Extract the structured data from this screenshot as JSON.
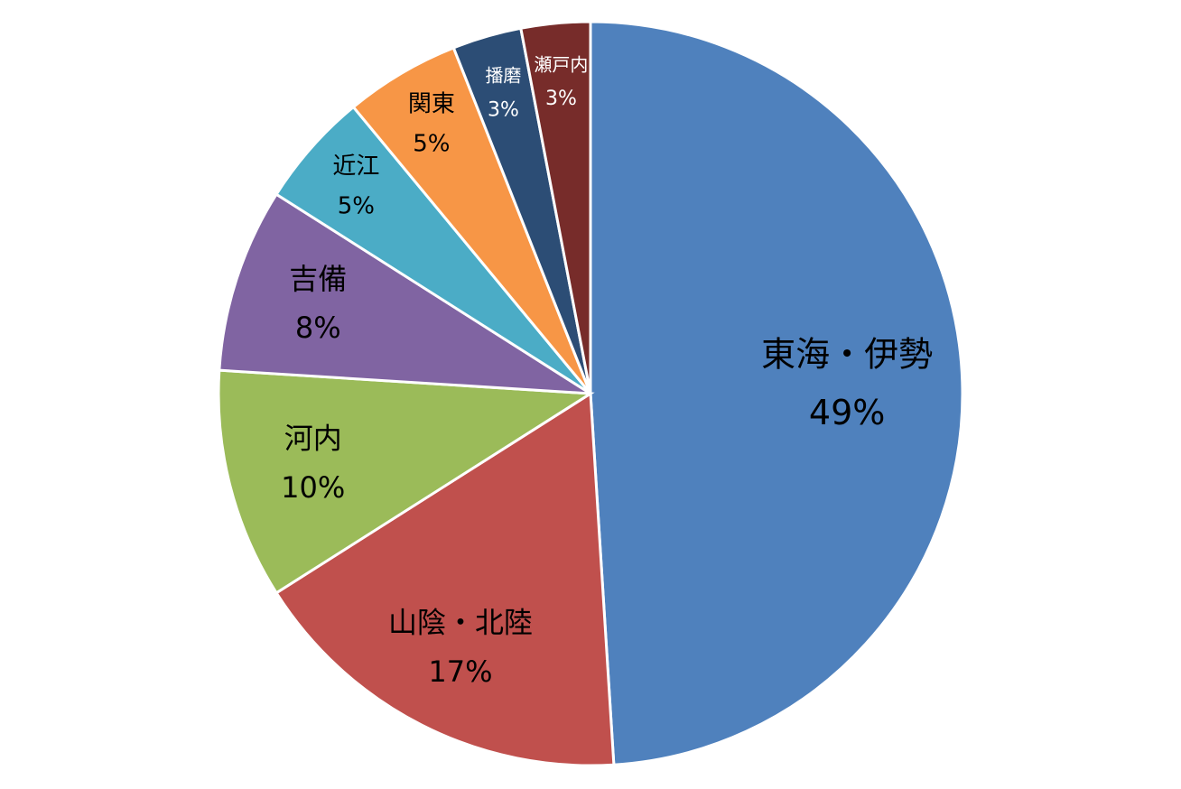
{
  "chart_data": {
    "type": "pie",
    "categories": [
      "東海・伊勢",
      "山陰・北陸",
      "河内",
      "吉備",
      "近江",
      "関東",
      "播磨",
      "瀬戸内"
    ],
    "values": [
      49,
      17,
      10,
      8,
      5,
      5,
      3,
      3
    ],
    "value_labels": [
      "49%",
      "17%",
      "10%",
      "8%",
      "5%",
      "5%",
      "3%",
      "3%"
    ],
    "colors": [
      "#4f81bd",
      "#c0504d",
      "#9bbb59",
      "#8064a2",
      "#4bacc6",
      "#f79646",
      "#2c4d75",
      "#772c2a"
    ]
  }
}
